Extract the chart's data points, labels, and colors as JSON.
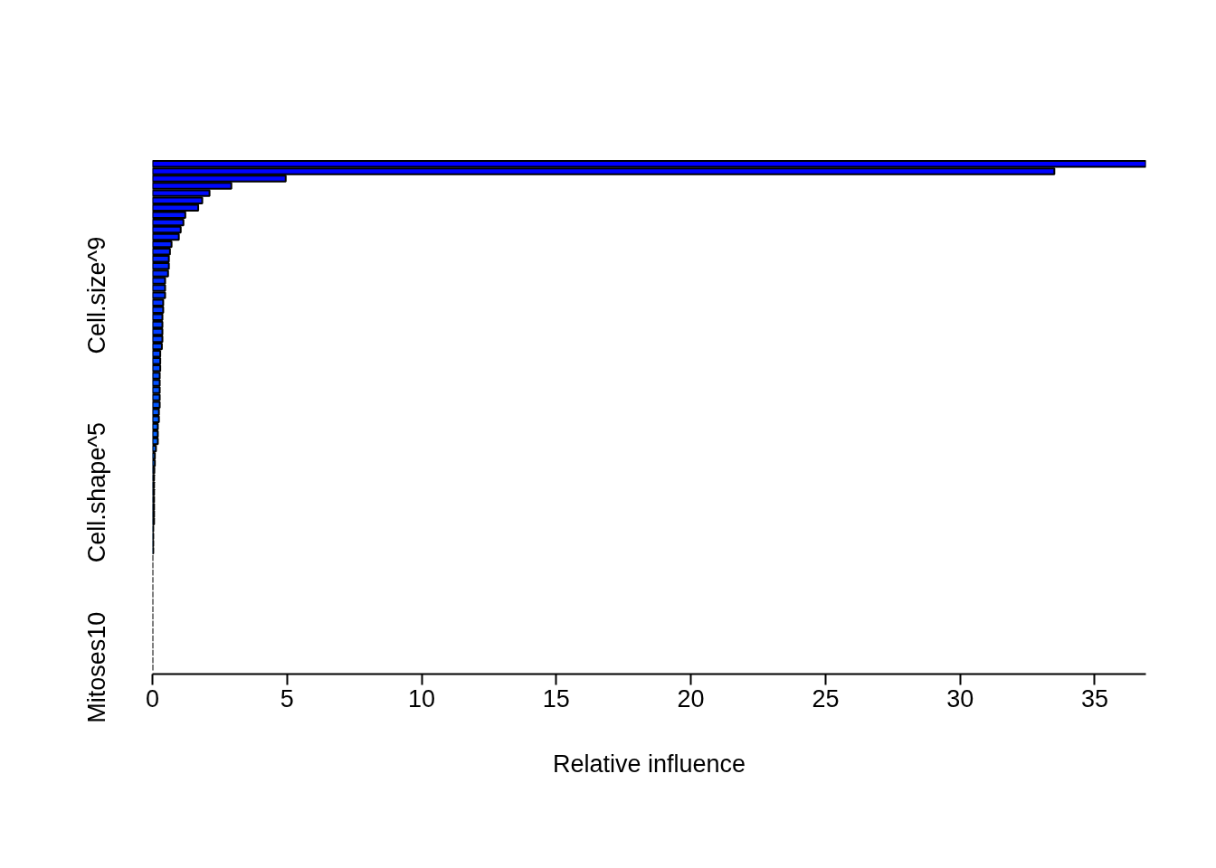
{
  "chart_data": {
    "type": "bar",
    "orientation": "horizontal",
    "xlabel": "Relative influence",
    "categories": [
      null,
      null,
      null,
      null,
      null,
      null,
      null,
      null,
      null,
      null,
      null,
      null,
      null,
      null,
      null,
      null,
      null,
      null,
      "Cell.size^9",
      null,
      null,
      null,
      null,
      null,
      null,
      null,
      null,
      null,
      null,
      null,
      null,
      null,
      null,
      null,
      null,
      null,
      null,
      null,
      null,
      null,
      null,
      null,
      null,
      null,
      null,
      "Cell.shape^5",
      null,
      null,
      null,
      null,
      null,
      null,
      null,
      null,
      null,
      null,
      null,
      null,
      null,
      null,
      null,
      null,
      null,
      null,
      null,
      null,
      null,
      null,
      null,
      "Mitoses10"
    ],
    "values": [
      36.9,
      33.5,
      4.95,
      2.93,
      2.12,
      1.85,
      1.7,
      1.22,
      1.15,
      1.05,
      0.98,
      0.71,
      0.65,
      0.61,
      0.61,
      0.58,
      0.47,
      0.47,
      0.47,
      0.4,
      0.4,
      0.37,
      0.37,
      0.37,
      0.37,
      0.35,
      0.29,
      0.29,
      0.29,
      0.27,
      0.27,
      0.27,
      0.27,
      0.27,
      0.24,
      0.24,
      0.2,
      0.2,
      0.2,
      0.13,
      0.09,
      0.09,
      0.07,
      0.06,
      0.06,
      0.06,
      0.06,
      0.06,
      0.06,
      0.06,
      0.03,
      0.03,
      0.03,
      0.03,
      0,
      0,
      0,
      0,
      0,
      0,
      0,
      0,
      0,
      0,
      0,
      0,
      0,
      0,
      0,
      0
    ],
    "colors": [
      "#0000ff",
      "#0003ff",
      "#0005ff",
      "#0008ff",
      "#000aff",
      "#000dff",
      "#0010ff",
      "#0012ff",
      "#0015ff",
      "#0017ff",
      "#001aff",
      "#001dff",
      "#001fff",
      "#0022ff",
      "#0024ff",
      "#0027ff",
      "#002aff",
      "#002cff",
      "#002fff",
      "#0031ff",
      "#0034ff",
      "#0037ff",
      "#0039ff",
      "#003cff",
      "#003eff",
      "#0041ff",
      "#0044ff",
      "#0046ff",
      "#0049ff",
      "#004bff",
      "#004eff",
      "#0051ff",
      "#0053ff",
      "#0056ff",
      "#0058ff",
      "#005bff",
      "#005eff",
      "#0060ff",
      "#0063ff",
      "#0065ff",
      "#0068ff",
      "#006bff",
      "#006dff",
      "#0070ff",
      "#0072ff",
      "#0075ff",
      "#0078ff",
      "#007aff",
      "#007dff",
      "#007fff",
      "#0082ff",
      "#0085ff",
      "#0087ff",
      "#008aff",
      "#000000",
      "#000000",
      "#000000",
      "#000000",
      "#000000",
      "#000000",
      "#000000",
      "#000000",
      "#000000",
      "#000000",
      "#000000",
      "#000000",
      "#000000",
      "#000000",
      "#000000",
      "#000000"
    ],
    "xlim": [
      0,
      36.9
    ],
    "xticks": [
      0,
      5,
      10,
      15,
      20,
      25,
      30,
      35
    ]
  }
}
